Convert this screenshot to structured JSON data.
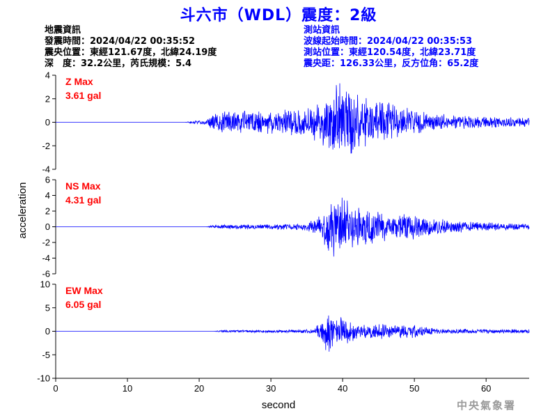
{
  "title": "斗六市（WDL）震度：2級",
  "quake_info": {
    "heading": "地震資訊",
    "origin_time": "發震時間：2024/04/22 00:35:52",
    "epicenter": "震央位置：東經121.67度，北緯24.19度",
    "depth_magnitude": "深　度：32.2公里，芮氏規模：5.4"
  },
  "station_info": {
    "heading": "測站資訊",
    "wave_start": "波線起始時間：2024/04/22 00:35:53",
    "station_location": "測站位置：東經120.54度，北緯23.71度",
    "distance_azimuth": "震央距：126.33公里，反方位角：65.2度"
  },
  "watermark": "中央氣象署",
  "chart_data": {
    "type": "line",
    "xlabel": "second",
    "ylabel": "acceleration",
    "xlim": [
      0,
      66
    ],
    "xticks": [
      "0",
      "10",
      "20",
      "30",
      "40",
      "50",
      "60"
    ],
    "panels": [
      {
        "name": "Z",
        "max_label": "Z Max",
        "max_value": "3.61 gal",
        "ylim": [
          -4,
          4
        ],
        "yticks": [
          "4",
          "2",
          "0",
          "-2",
          "-4"
        ]
      },
      {
        "name": "NS",
        "max_label": "NS Max",
        "max_value": "4.31 gal",
        "ylim": [
          -6,
          6
        ],
        "yticks": [
          "6",
          "4",
          "2",
          "0",
          "-2",
          "-4",
          "-6"
        ]
      },
      {
        "name": "EW",
        "max_label": "EW Max",
        "max_value": "6.05 gal",
        "ylim": [
          -10,
          10
        ],
        "yticks": [
          "10",
          "5",
          "0",
          "-5",
          "-10"
        ]
      }
    ],
    "colors": {
      "trace": "#0000ff",
      "max_label": "#ff0000",
      "title": "#0000ff"
    }
  }
}
